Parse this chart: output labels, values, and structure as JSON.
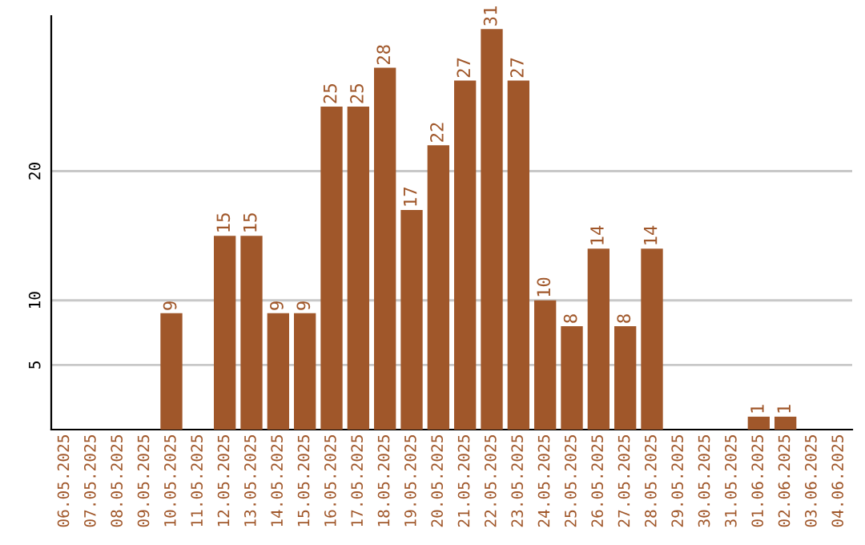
{
  "chart_data": {
    "type": "bar",
    "categories": [
      "06.05.2025",
      "07.05.2025",
      "08.05.2025",
      "09.05.2025",
      "10.05.2025",
      "11.05.2025",
      "12.05.2025",
      "13.05.2025",
      "14.05.2025",
      "15.05.2025",
      "16.05.2025",
      "17.05.2025",
      "18.05.2025",
      "19.05.2025",
      "20.05.2025",
      "21.05.2025",
      "22.05.2025",
      "23.05.2025",
      "24.05.2025",
      "25.05.2025",
      "26.05.2025",
      "27.05.2025",
      "28.05.2025",
      "29.05.2025",
      "30.05.2025",
      "31.05.2025",
      "01.06.2025",
      "02.06.2025",
      "03.06.2025",
      "04.06.2025"
    ],
    "values": [
      0,
      0,
      0,
      0,
      9,
      0,
      15,
      15,
      9,
      9,
      25,
      25,
      28,
      17,
      22,
      27,
      31,
      27,
      10,
      8,
      14,
      8,
      14,
      0,
      0,
      0,
      1,
      1,
      0,
      0
    ],
    "value_labels": [
      null,
      null,
      null,
      null,
      "9",
      null,
      "15",
      "15",
      "9",
      "9",
      "25",
      "25",
      "28",
      "17",
      "22",
      "27",
      "31",
      "27",
      "10",
      "8",
      "14",
      "8",
      "14",
      null,
      null,
      null,
      "1",
      "1",
      null,
      null
    ],
    "color": "#a0572a",
    "ylim": [
      0,
      32
    ],
    "yticks": [
      5,
      10,
      20
    ],
    "grid": "y",
    "legend": false
  }
}
